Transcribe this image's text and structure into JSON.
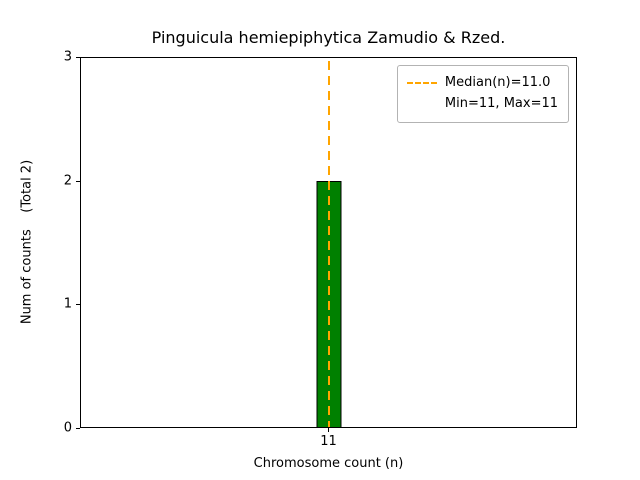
{
  "chart_data": {
    "type": "bar",
    "title": "Pinguicula hemiepiphytica Zamudio & Rzed.",
    "xlabel": "Chromosome count (n)",
    "ylabel": "Num of counts    (Total 2)",
    "categories": [
      "11"
    ],
    "values": [
      2
    ],
    "total": 2,
    "ylim": [
      0,
      3
    ],
    "yticks": [
      "0",
      "1",
      "2",
      "3"
    ],
    "xticks": [
      "11"
    ],
    "grid": false,
    "background": "#ffffff",
    "bar_color": "#008000",
    "bar_edge_color": "#000000",
    "median_line": {
      "x": "11",
      "median": 11.0,
      "color": "#ffa500",
      "style": "dashed",
      "orientation": "vertical"
    },
    "legend": {
      "position": "upper right",
      "entries": [
        {
          "label": "Median(n)=11.0",
          "handle": "dashed-orange-line"
        },
        {
          "label": "Min=11, Max=11",
          "handle": "none"
        }
      ]
    }
  }
}
